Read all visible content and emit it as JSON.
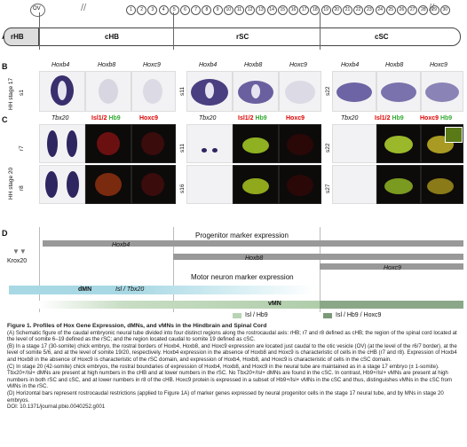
{
  "panel_a": {
    "letter": "A",
    "ov_label": "OV",
    "somites": [
      "1",
      "2",
      "3",
      "4",
      "5",
      "6",
      "7",
      "8",
      "9",
      "10",
      "11",
      "12",
      "13",
      "14",
      "15",
      "16",
      "17",
      "18",
      "19",
      "20",
      "21",
      "22",
      "23",
      "24",
      "25",
      "26",
      "27",
      "28",
      "29",
      "30"
    ],
    "regions": {
      "rhb": "rHB",
      "chb": "cHB",
      "rsc": "rSC",
      "csc": "cSC"
    }
  },
  "panel_b": {
    "letter": "B",
    "stage": "HH stage 17",
    "genes": [
      "Hoxb4",
      "Hoxb8",
      "Hoxc9"
    ],
    "rows": {
      "chb": "s1",
      "rsc": "s11",
      "csc": "s22"
    }
  },
  "panel_c": {
    "letter": "C",
    "stage": "HH stage 20",
    "tbx20": "Tbx20",
    "isl": "Isl1/2",
    "hb9": "Hb9",
    "hoxc9": "Hoxc9",
    "rows": {
      "chb_1": "r7",
      "chb_2": "r8",
      "rsc_1": "s11",
      "rsc_2": "s16",
      "csc_1": "s22",
      "csc_2": "s27"
    }
  },
  "panel_d": {
    "letter": "D",
    "progenitor_title": "Progenitor marker expression",
    "hoxb4": "Hoxb4",
    "hoxb8": "Hoxb8",
    "hoxc9": "Hoxc9",
    "krox20": "Krox20",
    "motor_title": "Motor neuron marker expression",
    "dmn": "dMN",
    "isl_tbx20": "Isl / Tbx20",
    "vmn": "vMN",
    "legend_isl_hb9": "Isl / Hb9",
    "legend_isl_hb9_hoxc9": "Isl / Hb9 / Hoxc9"
  },
  "caption": {
    "title": "Figure 1. Profiles of Hox Gene Expression, dMNs, and vMNs in the Hindbrain and Spinal Cord",
    "p_a": "(A) Schematic figure of the caudal embryonic neural tube divided into four distinct regions along the rostrocaudal axis: rHB; r7 and r8 defined as cHB; the region of the spinal cord located at the level of somite 6–19 defined as the rSC; and the region located caudal to somite 19 defined as cSC.",
    "p_b": "(B) In a stage 17 (30-somite) chick embryo, the rostral borders of Hoxb4, Hoxb8, and Hoxc9 expression are located just caudal to the otic vesicle (OV) (at the level of the r6/7 border), at the level of somite 5/6, and at the level of somite 19/20, respectively. Hoxb4 expression in the absence of Hoxb8 and Hoxc9 is characteristic of cells in the cHB (r7 and r8). Expression of Hoxb4 and Hoxb8 in the absence of Hoxc9 is characteristic of the rSC domain, and expression of Hoxb4, Hoxb8, and Hoxc9 is characteristic of cells in the cSC domain.",
    "p_c": "(C) In stage 20 (42-somite) chick embryos, the rostral boundaries of expression of Hoxb4, Hoxb8, and Hoxc9 in the neural tube are maintained as in a stage 17 embryo (± 1-somite). Tbx20+/Isl+ dMNs are present at high numbers in the cHB and at lower numbers in the rSC. No Tbx20+/Isl+ dMNs are found in the cSC. In contrast, Hb9+/Isl+ vMNs are present at high numbers in both rSC and cSC, and at lower numbers in r8 of the cHB. Hoxc9 protein is expressed in a subset of Hb9+/Isl+ vMNs in the cSC and thus, distinguishes vMNs in the cSC from vMNs in the rSC.",
    "p_d": "(D) Horizontal bars represent rostrocaudal restrictions (applied to Figure 1A) of marker genes expressed by neural progenitor cells in the stage 17 neural tube, and by MNs in stage 20 embryos.",
    "doi": "DOI: 10.1371/journal.pbio.0040252.g001"
  }
}
